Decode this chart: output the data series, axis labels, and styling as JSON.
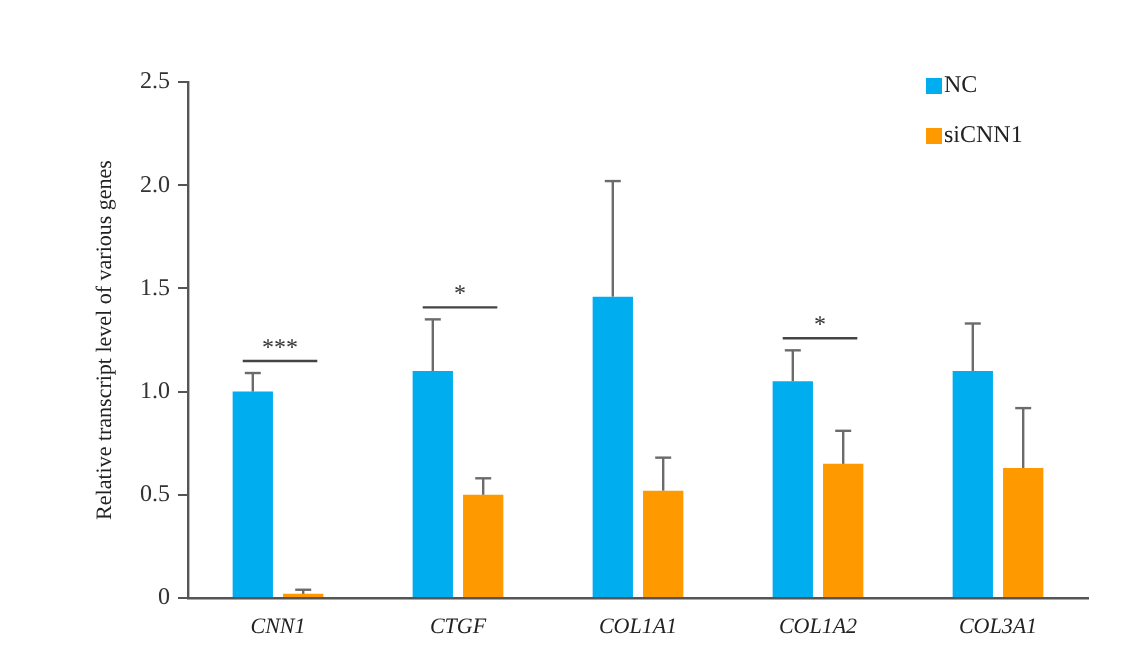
{
  "chart_data": {
    "type": "bar",
    "ylabel": "Relative transcript level of various genes",
    "categories": [
      "CNN1",
      "CTGF",
      "COL1A1",
      "COL1A2",
      "COL3A1"
    ],
    "series": [
      {
        "name": "NC",
        "color": "#00aeef",
        "values": [
          1.0,
          1.1,
          1.46,
          1.05,
          1.1
        ],
        "errors": [
          [
            1.0,
            1.09
          ],
          [
            1.1,
            1.35
          ],
          [
            1.46,
            2.02
          ],
          [
            1.05,
            1.2
          ],
          [
            1.1,
            1.33
          ]
        ]
      },
      {
        "name": "siCNN1",
        "color": "#ff9900",
        "values": [
          0.02,
          0.5,
          0.52,
          0.65,
          0.63
        ],
        "errors": [
          [
            0.02,
            0.04
          ],
          [
            0.5,
            0.58
          ],
          [
            0.52,
            0.68
          ],
          [
            0.65,
            0.81
          ],
          [
            0.63,
            0.92
          ]
        ]
      }
    ],
    "ylim": [
      0,
      2.5
    ],
    "yticks": [
      0,
      0.5,
      {
        "value": 1,
        "label": "1.0"
      },
      1.5,
      {
        "value": 2,
        "label": "2.0"
      },
      2.5
    ],
    "legend": "top right",
    "annotations": [
      "***",
      "*",
      "*"
    ]
  }
}
